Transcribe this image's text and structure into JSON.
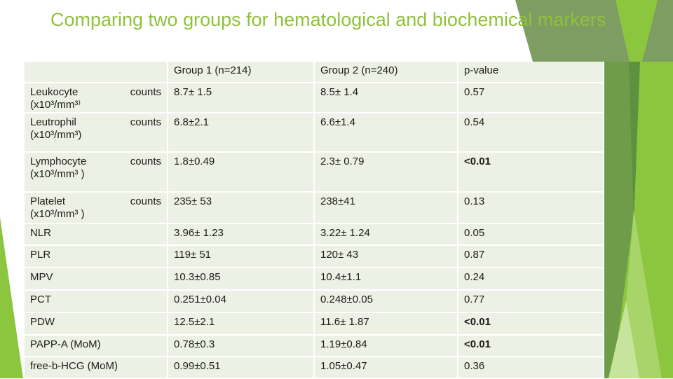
{
  "slide": {
    "title": "Comparing two groups for hematological and biochemical markers"
  },
  "table": {
    "headers": {
      "marker": "",
      "group1": "Group 1 (n=214)",
      "group2": "Group 2 (n=240)",
      "pvalue": "p-value"
    },
    "rows": [
      {
        "marker": "Leukocyte",
        "counts_label": "counts",
        "unit": "(x10³/mm³⁾",
        "group1": "8.7± 1.5",
        "group2": "8.5± 1.4",
        "pvalue": "0.57",
        "p_bold": false
      },
      {
        "marker": "Leutrophil",
        "counts_label": "counts",
        "unit": "(x10³/mm³)",
        "group1": "6.8±2.1",
        "group2": "6.6±1.4",
        "pvalue": "0.54",
        "p_bold": false
      },
      {
        "marker": "Lymphocyte",
        "counts_label": "counts",
        "unit": "(x10³/mm³ )",
        "group1": "1.8±0.49",
        "group2": "2.3± 0.79",
        "pvalue": "<0.01",
        "p_bold": true
      },
      {
        "marker": "Platelet",
        "counts_label": "counts",
        "unit": "(x10³/mm³ )",
        "group1": "235± 53",
        "group2": "238±41",
        "pvalue": "0.13",
        "p_bold": false
      },
      {
        "marker": "NLR",
        "counts_label": "",
        "unit": "",
        "group1": "3.96± 1.23",
        "group2": "3.22± 1.24",
        "pvalue": "0.05",
        "p_bold": false
      },
      {
        "marker": "PLR",
        "counts_label": "",
        "unit": "",
        "group1": "119± 51",
        "group2": "120± 43",
        "pvalue": "0.87",
        "p_bold": false
      },
      {
        "marker": "MPV",
        "counts_label": "",
        "unit": "",
        "group1": "10.3±0.85",
        "group2": "10.4±1.1",
        "pvalue": "0.24",
        "p_bold": false
      },
      {
        "marker": "PCT",
        "counts_label": "",
        "unit": "",
        "group1": "0.251±0.04",
        "group2": "0.248±0.05",
        "pvalue": "0.77",
        "p_bold": false
      },
      {
        "marker": "PDW",
        "counts_label": "",
        "unit": "",
        "group1": "12.5±2.1",
        "group2": "11.6± 1.87",
        "pvalue": "<0.01",
        "p_bold": true
      },
      {
        "marker": "PAPP-A (MoM)",
        "counts_label": "",
        "unit": "",
        "group1": "0.78±0.3",
        "group2": "1.19±0.84",
        "pvalue": "<0.01",
        "p_bold": true
      },
      {
        "marker": "free-b-HCG (MoM)",
        "counts_label": "",
        "unit": "",
        "group1": "0.99±0.51",
        "group2": "1.05±0.47",
        "pvalue": "0.36",
        "p_bold": false
      }
    ]
  },
  "colors": {
    "title_green": "#8fc13d",
    "cell_bg": "#edf0e4",
    "bright_green": "#8cc63f",
    "sage_green": "#7e9d63",
    "medium_green": "#6f9c49",
    "dark_green": "#5d9140",
    "light_green": "#a9d469",
    "pale_green": "#c6e49c",
    "text": "#1c1c1c"
  }
}
